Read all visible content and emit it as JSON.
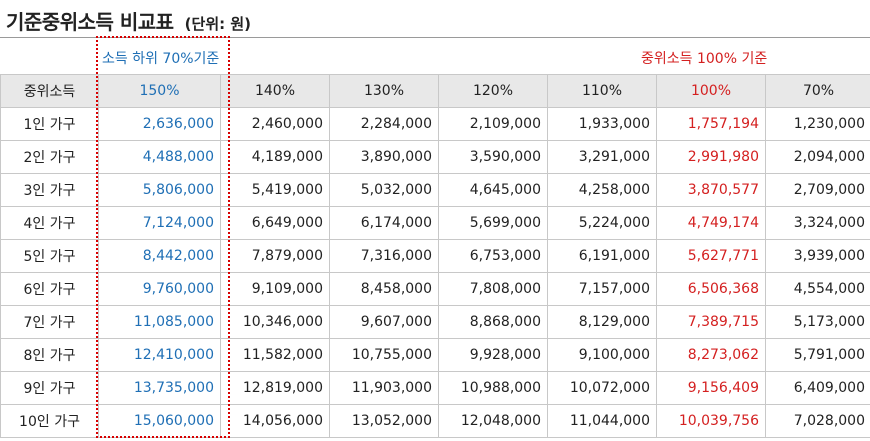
{
  "title": "기준중위소득 비교표",
  "unit": "(단위: 원)",
  "notes": {
    "left": "소득 하위 70%기준",
    "right": "중위소득 100% 기준"
  },
  "colors": {
    "blue": "#1f6fb5",
    "red": "#d42020",
    "header_bg": "#e8e8e8",
    "border": "#c8c8c8",
    "highlight": "#d80000"
  },
  "table": {
    "headers": [
      "중위소득",
      "150%",
      "140%",
      "130%",
      "120%",
      "110%",
      "100%",
      "70%"
    ],
    "rows": [
      [
        "1인 가구",
        "2,636,000",
        "2,460,000",
        "2,284,000",
        "2,109,000",
        "1,933,000",
        "1,757,194",
        "1,230,000"
      ],
      [
        "2인 가구",
        "4,488,000",
        "4,189,000",
        "3,890,000",
        "3,590,000",
        "3,291,000",
        "2,991,980",
        "2,094,000"
      ],
      [
        "3인 가구",
        "5,806,000",
        "5,419,000",
        "5,032,000",
        "4,645,000",
        "4,258,000",
        "3,870,577",
        "2,709,000"
      ],
      [
        "4인 가구",
        "7,124,000",
        "6,649,000",
        "6,174,000",
        "5,699,000",
        "5,224,000",
        "4,749,174",
        "3,324,000"
      ],
      [
        "5인 가구",
        "8,442,000",
        "7,879,000",
        "7,316,000",
        "6,753,000",
        "6,191,000",
        "5,627,771",
        "3,939,000"
      ],
      [
        "6인 가구",
        "9,760,000",
        "9,109,000",
        "8,458,000",
        "7,808,000",
        "7,157,000",
        "6,506,368",
        "4,554,000"
      ],
      [
        "7인 가구",
        "11,085,000",
        "10,346,000",
        "9,607,000",
        "8,868,000",
        "8,129,000",
        "7,389,715",
        "5,173,000"
      ],
      [
        "8인 가구",
        "12,410,000",
        "11,582,000",
        "10,755,000",
        "9,928,000",
        "9,100,000",
        "8,273,062",
        "5,791,000"
      ],
      [
        "9인 가구",
        "13,735,000",
        "12,819,000",
        "11,903,000",
        "10,988,000",
        "10,072,000",
        "9,156,409",
        "6,409,000"
      ],
      [
        "10인 가구",
        "15,060,000",
        "14,056,000",
        "13,052,000",
        "12,048,000",
        "11,044,000",
        "10,039,756",
        "7,028,000"
      ]
    ]
  }
}
